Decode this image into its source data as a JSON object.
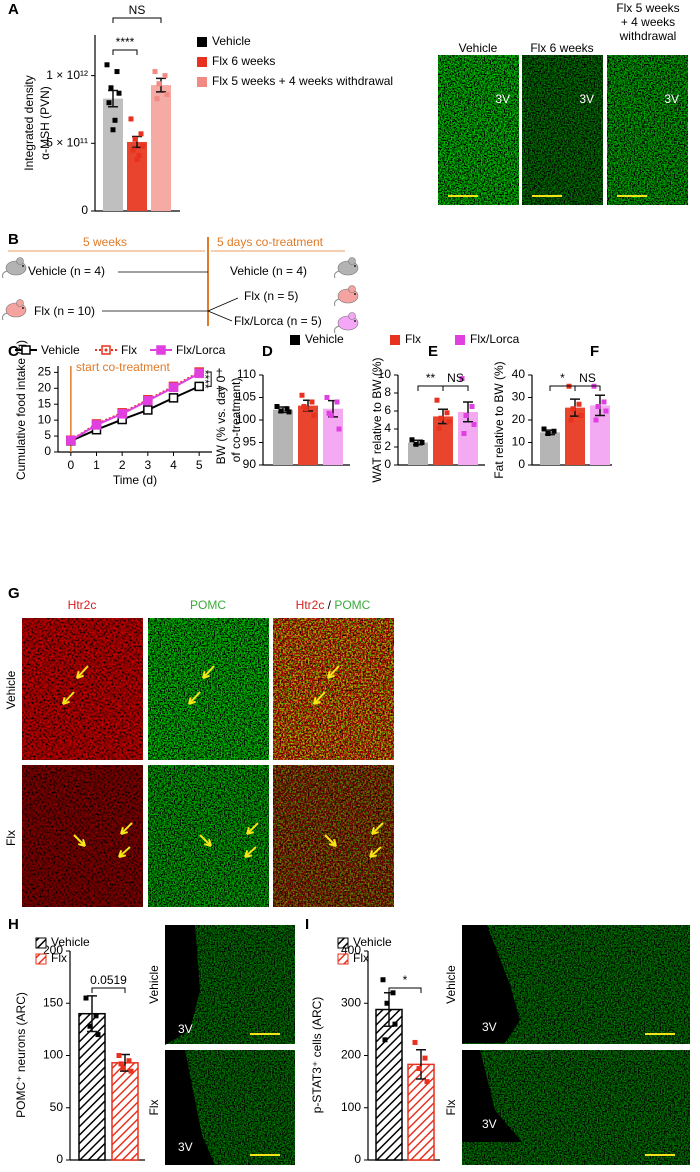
{
  "panel_labels": [
    "A",
    "B",
    "C",
    "D",
    "E",
    "F",
    "G",
    "H",
    "I"
  ],
  "chart_data": [
    {
      "type": "bar",
      "ylabel": [
        "Integrated density",
        "α-MSH (PVN)"
      ],
      "ylim": [
        0,
        1300000000000
      ],
      "yticks": [
        0,
        {
          "value": 500000000000,
          "label": "5 × 10¹¹"
        },
        {
          "value": 1000000000000,
          "label": "1 × 10¹²"
        }
      ],
      "annotations": [
        "****",
        "NS"
      ],
      "series": [
        {
          "name": "Vehicle",
          "color": "#000000",
          "fill": "#bfbfbf",
          "values": [
            830000000000
          ],
          "errors": [
            60000000000
          ],
          "points": [
            1080000000000,
            1030000000000,
            910000000000,
            870000000000,
            800000000000,
            670000000000,
            600000000000
          ]
        },
        {
          "name": "Flx 6 weeks",
          "color": "#e8321f",
          "fill": "#e8442e",
          "values": [
            510000000000
          ],
          "errors": [
            40000000000
          ],
          "points": [
            680000000000,
            570000000000,
            530000000000,
            480000000000,
            450000000000,
            410000000000,
            380000000000
          ]
        },
        {
          "name": "Flx 5 weeks + 4 weeks withdrawal",
          "color": "#f08a82",
          "fill": "#f5aaa4",
          "values": [
            930000000000
          ],
          "errors": [
            50000000000
          ],
          "points": [
            1030000000000,
            1000000000000,
            940000000000,
            860000000000,
            830000000000
          ]
        }
      ]
    },
    {
      "type": "line",
      "xlabel": "Time (d)",
      "ylabel": "Cumulative food intake (g)",
      "x": [
        0,
        1,
        2,
        3,
        4,
        5
      ],
      "xlim": [
        -0.5,
        5.5
      ],
      "xticks": [
        0,
        1,
        2,
        3,
        4,
        5
      ],
      "ylim": [
        0,
        27
      ],
      "yticks": [
        0,
        5,
        10,
        15,
        20,
        25
      ],
      "annotations": [
        "start co-treatment",
        "****",
        "†",
        "†"
      ],
      "series": [
        {
          "name": "Vehicle",
          "color": "#000000",
          "dash": "solid",
          "marker": "open-square",
          "values": [
            3.5,
            7,
            10.2,
            13.2,
            17,
            20.6
          ]
        },
        {
          "name": "Flx",
          "color": "#e8321f",
          "dash": "dotted",
          "marker": "dotted-square",
          "values": [
            3.7,
            8.8,
            12.3,
            16.4,
            20.6,
            25.1
          ]
        },
        {
          "name": "Flx/Lorca",
          "color": "#e040e0",
          "dash": "solid",
          "marker": "filled-square",
          "values": [
            3.6,
            8.5,
            12,
            16.1,
            20.3,
            24.7
          ]
        }
      ]
    },
    {
      "type": "bar",
      "ylabel": [
        "BW (% vs. day 0",
        "of co-treatment)"
      ],
      "ylim": [
        90,
        110
      ],
      "yticks": [
        90,
        95,
        100,
        105,
        110
      ],
      "series": [
        {
          "name": "Vehicle",
          "color": "#000000",
          "fill": "#b5b5b5",
          "values": [
            102.3
          ],
          "errors": [
            0.6
          ],
          "points": [
            103,
            102.5,
            102,
            101.8
          ]
        },
        {
          "name": "Flx",
          "color": "#e8321f",
          "fill": "#e8442e",
          "values": [
            103.2
          ],
          "errors": [
            1.2
          ],
          "points": [
            105.5,
            104,
            102.5,
            101,
            103
          ]
        },
        {
          "name": "Flx/Lorca",
          "color": "#e040e0",
          "fill": "#f3aaf3",
          "values": [
            102.5
          ],
          "errors": [
            1.8
          ],
          "points": [
            105,
            104,
            101,
            98,
            101.5
          ]
        }
      ]
    },
    {
      "type": "bar",
      "ylabel": "WAT relative to BW (%)",
      "ylim": [
        0,
        10
      ],
      "yticks": [
        0,
        2,
        4,
        6,
        8,
        10
      ],
      "annotations": [
        "**",
        "NS"
      ],
      "series": [
        {
          "color": "#000000",
          "fill": "#b5b5b5",
          "values": [
            2.5
          ],
          "errors": [
            0.25
          ],
          "points": [
            2.8,
            2.5,
            2.3
          ]
        },
        {
          "color": "#e8321f",
          "fill": "#e8442e",
          "values": [
            5.4
          ],
          "errors": [
            0.8
          ],
          "points": [
            7.2,
            5.8,
            5.2,
            4.8,
            4.1
          ]
        },
        {
          "color": "#e040e0",
          "fill": "#f3aaf3",
          "values": [
            5.9
          ],
          "errors": [
            1.1
          ],
          "points": [
            9.6,
            6.5,
            5.5,
            4.5,
            3.5
          ]
        }
      ]
    },
    {
      "type": "bar",
      "ylabel": "Fat relative to BW (%)",
      "ylim": [
        0,
        40
      ],
      "yticks": [
        0,
        10,
        20,
        30,
        40
      ],
      "annotations": [
        "*",
        "NS"
      ],
      "series": [
        {
          "color": "#000000",
          "fill": "#b5b5b5",
          "values": [
            14.5
          ],
          "errors": [
            1
          ],
          "points": [
            16,
            15,
            14
          ]
        },
        {
          "color": "#e8321f",
          "fill": "#e8442e",
          "values": [
            25.5
          ],
          "errors": [
            3.8
          ],
          "points": [
            35,
            27,
            25,
            22,
            20
          ]
        },
        {
          "color": "#e040e0",
          "fill": "#f3aaf3",
          "values": [
            26.5
          ],
          "errors": [
            4.5
          ],
          "points": [
            35,
            28,
            26,
            24,
            20
          ]
        }
      ]
    },
    {
      "type": "bar",
      "ylabel": "POMC⁺ neurons (ARC)",
      "ylim": [
        0,
        200
      ],
      "yticks": [
        0,
        50,
        100,
        150,
        200
      ],
      "annotations": [
        "0.0519"
      ],
      "series": [
        {
          "name": "Vehicle",
          "color": "#000000",
          "hatch": true,
          "values": [
            140
          ],
          "errors": [
            17
          ],
          "points": [
            155,
            138,
            128,
            120
          ]
        },
        {
          "name": "Flx",
          "color": "#e8321f",
          "hatch": true,
          "values": [
            93
          ],
          "errors": [
            8
          ],
          "points": [
            100,
            95,
            88,
            85,
            92
          ]
        }
      ]
    },
    {
      "type": "bar",
      "ylabel": "p-STAT3⁺ cells (ARC)",
      "ylim": [
        0,
        400
      ],
      "yticks": [
        0,
        100,
        200,
        300,
        400
      ],
      "annotations": [
        "*"
      ],
      "series": [
        {
          "name": "Vehicle",
          "color": "#000000",
          "hatch": true,
          "values": [
            288
          ],
          "errors": [
            32
          ],
          "points": [
            345,
            320,
            300,
            260,
            230
          ]
        },
        {
          "name": "Flx",
          "color": "#e8321f",
          "hatch": true,
          "values": [
            183
          ],
          "errors": [
            28
          ],
          "points": [
            225,
            195,
            175,
            150
          ]
        }
      ]
    }
  ],
  "panel_a_images": {
    "labels": [
      "Vehicle",
      "Flx 6 weeks",
      [
        "Flx 5 weeks",
        "+ 4 weeks",
        "withdrawal"
      ]
    ],
    "marker": "3V"
  },
  "panel_b": {
    "phase1": "5 weeks",
    "phase2": "5 days co-treatment",
    "groups": [
      "Vehicle (n = 4)",
      "Flx (n = 10)"
    ],
    "outcomes": [
      "Vehicle (n = 4)",
      "Flx (n = 5)",
      "Flx/Lorca (n = 5)"
    ]
  },
  "panel_g": {
    "columns": [
      "Htr2c",
      "POMC"
    ],
    "merged": [
      "Htr2c",
      " / ",
      "POMC"
    ],
    "rows": [
      "Vehicle",
      "Flx"
    ]
  },
  "panel_h_images": {
    "rows": [
      "Vehicle",
      "Flx"
    ],
    "marker": "3V"
  },
  "panel_i_images": {
    "rows": [
      "Vehicle",
      "Flx"
    ],
    "marker": "3V"
  }
}
